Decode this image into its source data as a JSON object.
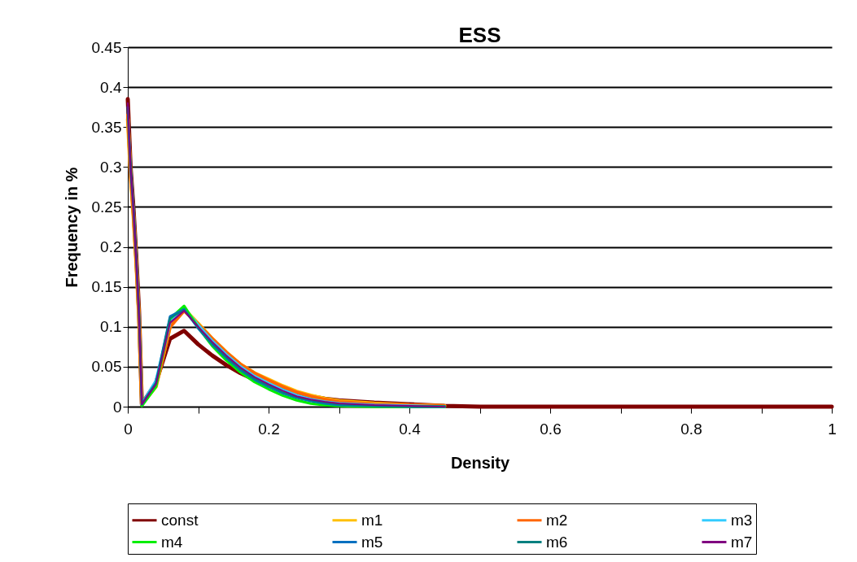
{
  "chart_data": {
    "type": "line",
    "title": "ESS",
    "xlabel": "Density",
    "ylabel": "Frequency in %",
    "x": [
      0,
      0.004,
      0.008,
      0.012,
      0.016,
      0.02,
      0.04,
      0.06,
      0.08,
      0.1,
      0.12,
      0.14,
      0.16,
      0.18,
      0.2,
      0.22,
      0.24,
      0.26,
      0.28,
      0.3,
      0.35,
      0.4,
      0.45,
      0.5,
      1
    ],
    "series": [
      {
        "name": "const",
        "color": "#800000",
        "values": [
          0.385,
          0.3,
          0.25,
          0.19,
          0.12,
          0.003,
          0.03,
          0.085,
          0.095,
          0.078,
          0.064,
          0.052,
          0.042,
          0.034,
          0.028,
          0.022,
          0.017,
          0.013,
          0.01,
          0.008,
          0.005,
          0.003,
          0.001,
          0,
          0
        ]
      },
      {
        "name": "m1",
        "color": "#ffc000",
        "values": [
          0.36,
          0.29,
          0.24,
          0.18,
          0.11,
          0.003,
          0.025,
          0.1,
          0.122,
          0.104,
          0.085,
          0.068,
          0.053,
          0.042,
          0.034,
          0.026,
          0.019,
          0.014,
          0.01,
          0.007,
          0.004,
          0.002,
          0.001,
          null,
          null
        ]
      },
      {
        "name": "m2",
        "color": "#ff6600",
        "values": [
          0.365,
          0.29,
          0.24,
          0.18,
          0.11,
          0.003,
          0.026,
          0.1,
          0.12,
          0.103,
          0.085,
          0.068,
          0.053,
          0.042,
          0.033,
          0.025,
          0.018,
          0.013,
          0.009,
          0.006,
          0.003,
          0.002,
          0.001,
          null,
          null
        ]
      },
      {
        "name": "m3",
        "color": "#33ccff",
        "values": [
          null,
          null,
          null,
          null,
          null,
          0.003,
          0.032,
          0.106,
          0.123,
          0.102,
          0.082,
          0.065,
          0.05,
          0.038,
          0.029,
          0.021,
          0.014,
          0.009,
          0.006,
          0.004,
          0.002,
          0.001,
          0,
          null,
          null
        ]
      },
      {
        "name": "m4",
        "color": "#00ee00",
        "values": [
          null,
          null,
          null,
          null,
          null,
          0.001,
          0.025,
          0.11,
          0.126,
          0.099,
          0.076,
          0.058,
          0.043,
          0.031,
          0.022,
          0.014,
          0.008,
          0.004,
          0.002,
          0.001,
          0,
          0,
          0,
          null,
          null
        ]
      },
      {
        "name": "m5",
        "color": "#0070c0",
        "values": [
          0.375,
          0.295,
          0.25,
          0.185,
          0.115,
          0.003,
          0.03,
          0.113,
          0.122,
          0.098,
          0.078,
          0.061,
          0.046,
          0.034,
          0.025,
          0.017,
          0.011,
          0.007,
          0.004,
          0.002,
          0.001,
          0,
          0,
          null,
          null
        ]
      },
      {
        "name": "m6",
        "color": "#008080",
        "values": [
          0.372,
          0.305,
          0.255,
          0.19,
          0.12,
          0.003,
          0.029,
          0.111,
          0.121,
          0.099,
          0.079,
          0.062,
          0.047,
          0.035,
          0.026,
          0.018,
          0.012,
          0.008,
          0.005,
          0.003,
          0.001,
          0,
          0,
          null,
          null
        ]
      },
      {
        "name": "m7",
        "color": "#800080",
        "values": [
          0.38,
          0.3,
          0.25,
          0.185,
          0.115,
          0.003,
          0.028,
          0.105,
          0.12,
          0.1,
          0.081,
          0.064,
          0.049,
          0.037,
          0.028,
          0.02,
          0.013,
          0.009,
          0.006,
          0.004,
          0.002,
          0.001,
          0,
          null,
          null
        ]
      }
    ],
    "xlim": [
      0,
      1
    ],
    "xticks": [
      0,
      {
        "value": 0.1,
        "label": null
      },
      0.2,
      {
        "value": 0.3,
        "label": null
      },
      0.4,
      {
        "value": 0.5,
        "label": null
      },
      0.6,
      {
        "value": 0.7,
        "label": null
      },
      0.8,
      {
        "value": 0.9,
        "label": null
      },
      1
    ],
    "ylim": [
      0,
      0.45
    ],
    "yticks": [
      0,
      0.05,
      0.1,
      0.15,
      0.2,
      0.25,
      0.3,
      0.35,
      0.4,
      0.45
    ],
    "grid": "y",
    "legend": "bottom",
    "marker": "none",
    "line_style": "solid"
  }
}
